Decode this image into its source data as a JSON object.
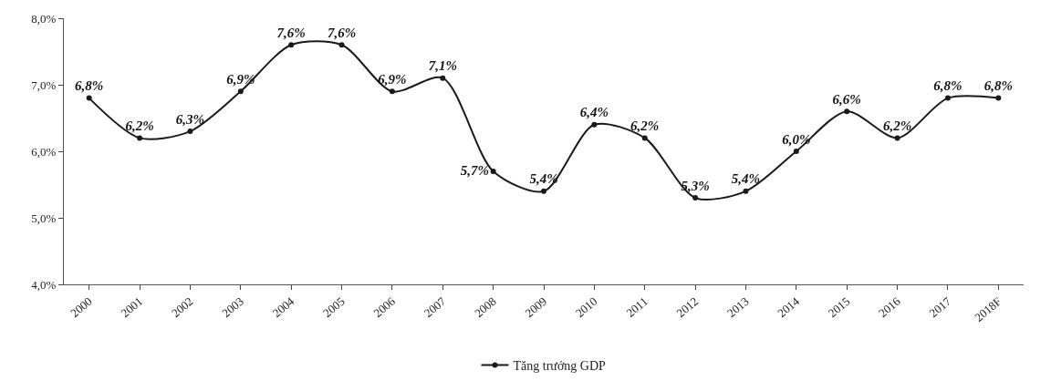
{
  "chart_data": {
    "type": "line",
    "categories": [
      "2000",
      "2001",
      "2002",
      "2003",
      "2004",
      "2005",
      "2006",
      "2007",
      "2008",
      "2009",
      "2010",
      "2011",
      "2012",
      "2013",
      "2014",
      "2015",
      "2016",
      "2017",
      "2018F"
    ],
    "series": [
      {
        "name": "Tăng trưởng GDP",
        "color": "#1a1a1a",
        "values": [
          6.8,
          6.2,
          6.3,
          6.9,
          7.6,
          7.6,
          6.9,
          7.1,
          5.7,
          5.4,
          6.4,
          6.2,
          5.3,
          5.4,
          6.0,
          6.6,
          6.2,
          6.8,
          6.8
        ],
        "value_labels": [
          "6,8%",
          "6,2%",
          "6,3%",
          "6,9%",
          "7,6%",
          "7,6%",
          "6,9%",
          "7,1%",
          "5,7%",
          "5,4%",
          "6,4%",
          "6,2%",
          "5,3%",
          "5,4%",
          "6,0%",
          "6,6%",
          "6,2%",
          "6,8%",
          "6,8%"
        ]
      }
    ],
    "ylim": [
      4.0,
      8.0
    ],
    "yticks": [
      {
        "value": 4.0,
        "label": "4,0%"
      },
      {
        "value": 5.0,
        "label": "5,0%"
      },
      {
        "value": 6.0,
        "label": "6,0%"
      },
      {
        "value": 7.0,
        "label": "7,0%"
      },
      {
        "value": 8.0,
        "label": "8,0%"
      }
    ],
    "legend": "bottom",
    "marker": "circle",
    "line_style": "solid"
  }
}
